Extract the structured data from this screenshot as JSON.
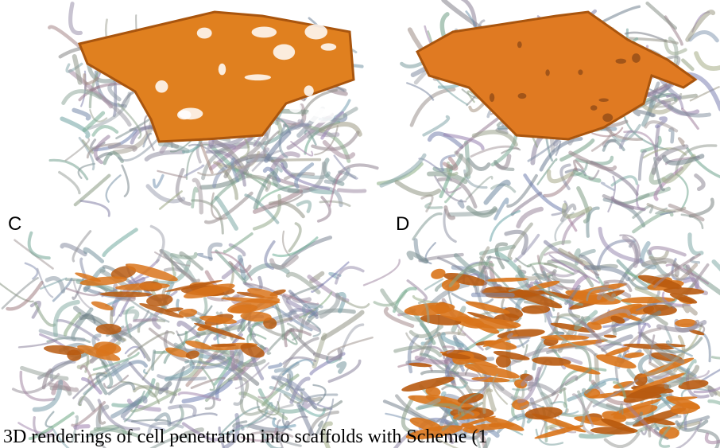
{
  "panels": [
    {
      "label": "C"
    },
    {
      "label": "D"
    }
  ],
  "caption": "3D renderings of cell penetration into scaffolds with Scheme (1"
}
